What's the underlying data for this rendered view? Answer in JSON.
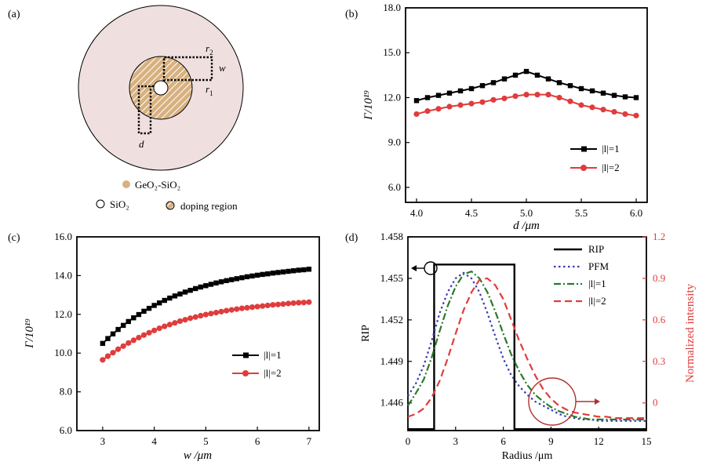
{
  "panels": {
    "a": {
      "label": "(a)",
      "labels": {
        "r2": "r",
        "r2_sub": "2",
        "r1": "r",
        "r1_sub": "1",
        "w": "w",
        "d": "d"
      },
      "legend": {
        "germanium": "GeO₂-SiO₂",
        "silica": "SiO₂",
        "doping": "doping region"
      },
      "colors": {
        "cladding": "#efe0df",
        "ring": "#d8b180",
        "hatch": "#ffffff",
        "dotted": "#000000"
      }
    },
    "b": {
      "label": "(b)"
    },
    "c": {
      "label": "(c)"
    },
    "d": {
      "label": "(d)"
    }
  },
  "colors": {
    "series1": "#000000",
    "series2": "#e03c3c",
    "pfm": "#3b3bb5",
    "l1": "#2a7a2a",
    "l2": "#e03c3c",
    "right_axis": "#e03c3c"
  },
  "chart_data": [
    {
      "id": "b",
      "type": "line",
      "xlabel": "d /μm",
      "ylabel": "Γ/10¹⁹",
      "xlim": [
        3.9,
        6.1
      ],
      "ylim": [
        5.0,
        18.0
      ],
      "xticks": [
        "4.0",
        "4.5",
        "5.0",
        "5.5",
        "6.0"
      ],
      "yticks": [
        "6.0",
        "9.0",
        "12.0",
        "15.0",
        "18.0"
      ],
      "legend": "right",
      "x": [
        4.0,
        4.1,
        4.2,
        4.3,
        4.4,
        4.5,
        4.6,
        4.7,
        4.8,
        4.9,
        5.0,
        5.1,
        5.2,
        5.3,
        5.4,
        5.5,
        5.6,
        5.7,
        5.8,
        5.9,
        6.0
      ],
      "series": [
        {
          "name": "|l|=1",
          "values": [
            11.8,
            12.0,
            12.15,
            12.3,
            12.45,
            12.6,
            12.8,
            13.0,
            13.25,
            13.5,
            13.75,
            13.5,
            13.25,
            13.0,
            12.8,
            12.6,
            12.45,
            12.3,
            12.15,
            12.05,
            12.0
          ]
        },
        {
          "name": "|l|=2",
          "values": [
            10.9,
            11.1,
            11.25,
            11.4,
            11.5,
            11.6,
            11.7,
            11.85,
            11.95,
            12.1,
            12.2,
            12.2,
            12.2,
            12.0,
            11.75,
            11.5,
            11.35,
            11.2,
            11.05,
            10.9,
            10.8
          ]
        }
      ]
    },
    {
      "id": "c",
      "type": "line",
      "xlabel": "w /μm",
      "ylabel": "Γ/10¹⁹",
      "xlim": [
        2.5,
        7.2
      ],
      "ylim": [
        6.0,
        16.0
      ],
      "xticks": [
        "3",
        "4",
        "5",
        "6",
        "7"
      ],
      "yticks": [
        "6.0",
        "8.0",
        "10.0",
        "12.0",
        "14.0",
        "16.0"
      ],
      "legend": "right",
      "x": [
        3.0,
        3.1,
        3.2,
        3.3,
        3.4,
        3.5,
        3.6,
        3.7,
        3.8,
        3.9,
        4.0,
        4.1,
        4.2,
        4.3,
        4.4,
        4.5,
        4.6,
        4.7,
        4.8,
        4.9,
        5.0,
        5.1,
        5.2,
        5.3,
        5.4,
        5.5,
        5.6,
        5.7,
        5.8,
        5.9,
        6.0,
        6.1,
        6.2,
        6.3,
        6.4,
        6.5,
        6.6,
        6.7,
        6.8,
        6.9,
        7.0
      ],
      "series": [
        {
          "name": "|l|=1",
          "values": [
            10.5,
            10.75,
            10.99,
            11.22,
            11.43,
            11.63,
            11.82,
            11.99,
            12.16,
            12.31,
            12.46,
            12.59,
            12.72,
            12.84,
            12.95,
            13.05,
            13.15,
            13.24,
            13.33,
            13.41,
            13.48,
            13.55,
            13.62,
            13.68,
            13.74,
            13.79,
            13.84,
            13.89,
            13.94,
            13.98,
            14.02,
            14.06,
            14.09,
            14.13,
            14.16,
            14.19,
            14.22,
            14.25,
            14.28,
            14.3,
            14.33
          ]
        },
        {
          "name": "|l|=2",
          "values": [
            9.65,
            9.84,
            10.02,
            10.2,
            10.36,
            10.52,
            10.66,
            10.8,
            10.93,
            11.05,
            11.17,
            11.28,
            11.38,
            11.47,
            11.56,
            11.65,
            11.72,
            11.8,
            11.86,
            11.93,
            11.99,
            12.04,
            12.09,
            12.14,
            12.19,
            12.23,
            12.27,
            12.31,
            12.34,
            12.37,
            12.4,
            12.43,
            12.46,
            12.49,
            12.51,
            12.53,
            12.56,
            12.58,
            12.6,
            12.61,
            12.63
          ]
        }
      ]
    },
    {
      "id": "d",
      "type": "line",
      "xlabel": "Radius /μm",
      "ylabel": "RIP",
      "y2label": "Normalized intensity",
      "xlim": [
        0,
        15
      ],
      "ylim": [
        1.444,
        1.458
      ],
      "y2lim": [
        -0.2,
        1.2
      ],
      "xticks": [
        "0",
        "3",
        "6",
        "9",
        "12",
        "15"
      ],
      "yticks": [
        "1.446",
        "1.449",
        "1.452",
        "1.455",
        "1.458"
      ],
      "y2ticks": [
        "0",
        "0.3",
        "0.6",
        "0.9",
        "1.2"
      ],
      "legend": "top-right",
      "rip": {
        "name": "RIP",
        "x": [
          0,
          1.65,
          1.65,
          6.7,
          6.7,
          15
        ],
        "values": [
          1.4441,
          1.4441,
          1.456,
          1.456,
          1.4441,
          1.4441
        ]
      },
      "intensity_x": [
        0,
        0.5,
        1,
        1.5,
        2,
        2.5,
        3,
        3.5,
        4,
        4.5,
        5,
        5.5,
        6,
        6.5,
        7,
        7.5,
        8,
        8.5,
        9,
        9.5,
        10,
        10.5,
        11,
        11.5,
        12,
        12.5,
        13,
        13.5,
        14,
        14.5,
        15
      ],
      "series": [
        {
          "name": "PFM",
          "values": [
            0.05,
            0.14,
            0.27,
            0.45,
            0.65,
            0.8,
            0.9,
            0.94,
            0.9,
            0.8,
            0.65,
            0.48,
            0.32,
            0.2,
            0.12,
            0.06,
            0.01,
            -0.02,
            -0.05,
            -0.08,
            -0.1,
            -0.11,
            -0.12,
            -0.12,
            -0.13,
            -0.13,
            -0.13,
            -0.13,
            -0.13,
            -0.13,
            -0.13
          ]
        },
        {
          "name": "|l|=1",
          "values": [
            -0.02,
            0.07,
            0.17,
            0.33,
            0.52,
            0.7,
            0.84,
            0.93,
            0.95,
            0.9,
            0.8,
            0.66,
            0.5,
            0.35,
            0.23,
            0.13,
            0.06,
            0.01,
            -0.03,
            -0.06,
            -0.08,
            -0.1,
            -0.11,
            -0.12,
            -0.12,
            -0.12,
            -0.12,
            -0.12,
            -0.12,
            -0.12,
            -0.12
          ]
        },
        {
          "name": "|l|=2",
          "values": [
            -0.1,
            -0.08,
            -0.04,
            0.04,
            0.16,
            0.32,
            0.5,
            0.67,
            0.8,
            0.89,
            0.9,
            0.85,
            0.75,
            0.6,
            0.45,
            0.32,
            0.2,
            0.1,
            0.03,
            -0.02,
            -0.05,
            -0.07,
            -0.08,
            -0.09,
            -0.1,
            -0.1,
            -0.11,
            -0.11,
            -0.11,
            -0.11,
            -0.11
          ]
        }
      ]
    }
  ]
}
